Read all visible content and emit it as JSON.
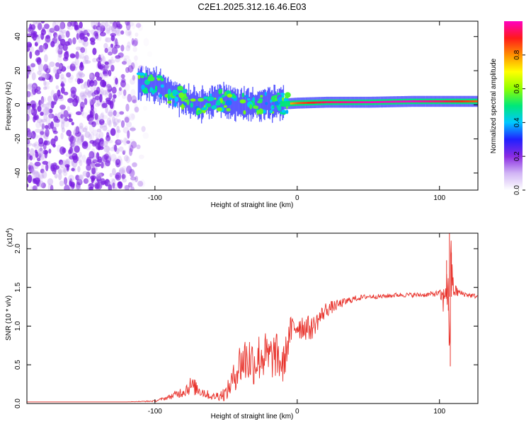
{
  "title": "C2E1.2025.312.16.46.E03",
  "colors": {
    "snr_line": "#e8322b",
    "speckle": "#7a1fe0",
    "band_ridge": "#ff2a1a"
  },
  "chart_data": [
    {
      "type": "heatmap",
      "xlabel": "Height of straight line (km)",
      "ylabel": "Frequency (Hz)",
      "xlim": [
        -190,
        127
      ],
      "ylim": [
        -50,
        49
      ],
      "xticks": [
        -100,
        0,
        100
      ],
      "yticks": [
        -40,
        -20,
        0,
        20,
        40
      ],
      "xtick_labels": [
        "-100",
        "0",
        "100"
      ],
      "ytick_labels": [
        "-40",
        "-20",
        "0",
        "20",
        "40"
      ],
      "colorbar": {
        "label": "Normalized spectral amplitude",
        "range": [
          0,
          1
        ],
        "ticks": [
          0.0,
          0.2,
          0.4,
          0.6,
          0.8
        ],
        "tick_labels": [
          "0.0",
          "0.2",
          "0.4",
          "0.6",
          "0.8"
        ],
        "colormap": [
          "#ffffff",
          "#d1b5f5",
          "#8a2be2",
          "#2020ff",
          "#00c8ff",
          "#00e878",
          "#90ff00",
          "#ffff00",
          "#ff9000",
          "#ff1a1a",
          "#ff00c0"
        ]
      },
      "noise_region": {
        "x_range": [
          -190,
          -102
        ],
        "y_range": [
          -50,
          49
        ],
        "amplitude": 0.15
      },
      "signal_track": [
        {
          "x": -112,
          "freq": 13,
          "amp": 0.45
        },
        {
          "x": -100,
          "freq": 12,
          "amp": 0.45
        },
        {
          "x": -85,
          "freq": 5,
          "amp": 0.4
        },
        {
          "x": -70,
          "freq": 0,
          "amp": 0.4
        },
        {
          "x": -55,
          "freq": 3,
          "amp": 0.45
        },
        {
          "x": -40,
          "freq": 0,
          "amp": 0.5
        },
        {
          "x": -25,
          "freq": 1,
          "amp": 0.55
        },
        {
          "x": -10,
          "freq": 0.5,
          "amp": 0.7
        },
        {
          "x": 0,
          "freq": 1,
          "amp": 0.85
        },
        {
          "x": 20,
          "freq": 1.5,
          "amp": 0.95
        },
        {
          "x": 50,
          "freq": 1.5,
          "amp": 1.0
        },
        {
          "x": 80,
          "freq": 2,
          "amp": 1.0
        },
        {
          "x": 100,
          "freq": 2,
          "amp": 0.95
        },
        {
          "x": 127,
          "freq": 2,
          "amp": 0.85
        }
      ]
    },
    {
      "type": "line",
      "xlabel": "Height of straight line (km)",
      "ylabel": "SNR (10 * v/v)",
      "y_multiplier": "(x10",
      "y_multiplier_exp": "4",
      "xlim": [
        -190,
        127
      ],
      "ylim": [
        0,
        2.2
      ],
      "xticks": [
        -100,
        0,
        100
      ],
      "yticks": [
        0.0,
        0.5,
        1.0,
        1.5,
        2.0
      ],
      "xtick_labels": [
        "-100",
        "0",
        "100"
      ],
      "ytick_labels": [
        "0.0",
        "0.5",
        "1.0",
        "1.5",
        "2.0"
      ],
      "series": [
        {
          "name": "SNR",
          "x": [
            -190,
            -120,
            -100,
            -90,
            -80,
            -75,
            -70,
            -60,
            -50,
            -45,
            -40,
            -35,
            -30,
            -25,
            -20,
            -15,
            -10,
            -5,
            0,
            10,
            20,
            30,
            40,
            50,
            60,
            70,
            80,
            90,
            100,
            103,
            105,
            107,
            108,
            110,
            115,
            120,
            127
          ],
          "y": [
            0.02,
            0.02,
            0.03,
            0.08,
            0.15,
            0.22,
            0.18,
            0.08,
            0.12,
            0.3,
            0.5,
            0.55,
            0.5,
            0.6,
            0.55,
            0.6,
            0.45,
            0.9,
            1.0,
            0.95,
            1.2,
            1.28,
            1.35,
            1.38,
            1.38,
            1.4,
            1.4,
            1.4,
            1.42,
            1.3,
            1.6,
            0.9,
            1.7,
            1.45,
            1.42,
            1.4,
            1.38
          ],
          "noise": [
            0,
            0,
            0.01,
            0.03,
            0.08,
            0.12,
            0.1,
            0.04,
            0.1,
            0.18,
            0.3,
            0.35,
            0.3,
            0.35,
            0.3,
            0.3,
            0.25,
            0.2,
            0.2,
            0.15,
            0.1,
            0.06,
            0.04,
            0.03,
            0.03,
            0.03,
            0.03,
            0.03,
            0.04,
            0.2,
            0.35,
            0.5,
            0.45,
            0.1,
            0.04,
            0.03,
            0.03
          ]
        }
      ]
    }
  ]
}
